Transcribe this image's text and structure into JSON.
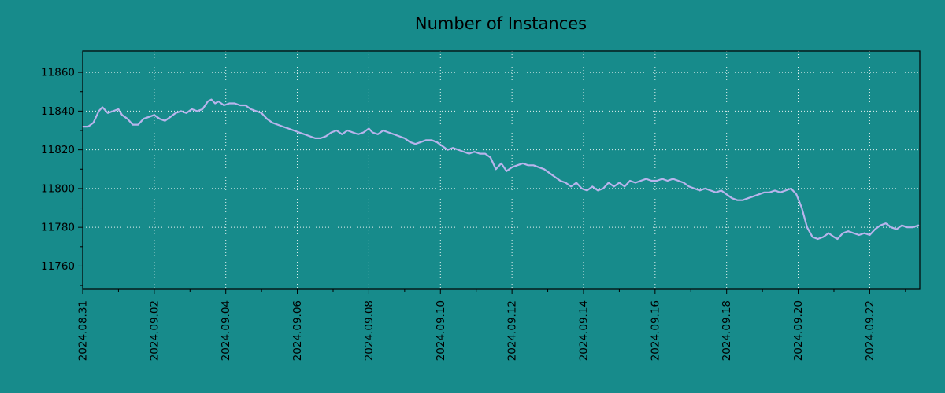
{
  "colors": {
    "background": "#178b8b",
    "line": "#b8b4ec",
    "grid": "#ffffff",
    "axis": "#000000",
    "text": "#000000"
  },
  "chart_data": {
    "type": "line",
    "title": "Number of Instances",
    "xlabel": "",
    "ylabel": "",
    "legend": "none",
    "grid": "dotted",
    "xlim": [
      0,
      23.4
    ],
    "ylim": [
      11748,
      11871
    ],
    "y_ticks": [
      11760,
      11780,
      11800,
      11820,
      11840,
      11860
    ],
    "x_ticks": [
      {
        "pos": 0,
        "label": "2024.08.31"
      },
      {
        "pos": 2,
        "label": "2024.09.02"
      },
      {
        "pos": 4,
        "label": "2024.09.04"
      },
      {
        "pos": 6,
        "label": "2024.09.06"
      },
      {
        "pos": 8,
        "label": "2024.09.08"
      },
      {
        "pos": 10,
        "label": "2024.09.10"
      },
      {
        "pos": 12,
        "label": "2024.09.12"
      },
      {
        "pos": 14,
        "label": "2024.09.14"
      },
      {
        "pos": 16,
        "label": "2024.09.16"
      },
      {
        "pos": 18,
        "label": "2024.09.18"
      },
      {
        "pos": 20,
        "label": "2024.09.20"
      },
      {
        "pos": 22,
        "label": "2024.09.22"
      }
    ],
    "minor_x_ticks": [
      1,
      3,
      5,
      7,
      9,
      11,
      13,
      15,
      17,
      19,
      21,
      23
    ],
    "series": [
      {
        "name": "instances",
        "color": "#b8b4ec",
        "points": [
          [
            0.0,
            11832
          ],
          [
            0.15,
            11832
          ],
          [
            0.3,
            11834
          ],
          [
            0.45,
            11840
          ],
          [
            0.55,
            11842
          ],
          [
            0.7,
            11839
          ],
          [
            0.85,
            11840
          ],
          [
            1.0,
            11841
          ],
          [
            1.1,
            11838
          ],
          [
            1.25,
            11836
          ],
          [
            1.4,
            11833
          ],
          [
            1.55,
            11833
          ],
          [
            1.7,
            11836
          ],
          [
            1.85,
            11837
          ],
          [
            2.0,
            11838
          ],
          [
            2.15,
            11836
          ],
          [
            2.3,
            11835
          ],
          [
            2.45,
            11837
          ],
          [
            2.6,
            11839
          ],
          [
            2.75,
            11840
          ],
          [
            2.9,
            11839
          ],
          [
            3.05,
            11841
          ],
          [
            3.2,
            11840
          ],
          [
            3.35,
            11841
          ],
          [
            3.5,
            11845
          ],
          [
            3.6,
            11846
          ],
          [
            3.7,
            11844
          ],
          [
            3.8,
            11845
          ],
          [
            3.95,
            11843
          ],
          [
            4.1,
            11844
          ],
          [
            4.25,
            11844
          ],
          [
            4.4,
            11843
          ],
          [
            4.55,
            11843
          ],
          [
            4.7,
            11841
          ],
          [
            4.85,
            11840
          ],
          [
            5.0,
            11839
          ],
          [
            5.15,
            11836
          ],
          [
            5.3,
            11834
          ],
          [
            5.45,
            11833
          ],
          [
            5.6,
            11832
          ],
          [
            5.75,
            11831
          ],
          [
            5.9,
            11830
          ],
          [
            6.05,
            11829
          ],
          [
            6.2,
            11828
          ],
          [
            6.35,
            11827
          ],
          [
            6.5,
            11826
          ],
          [
            6.65,
            11826
          ],
          [
            6.8,
            11827
          ],
          [
            6.95,
            11829
          ],
          [
            7.1,
            11830
          ],
          [
            7.25,
            11828
          ],
          [
            7.4,
            11830
          ],
          [
            7.55,
            11829
          ],
          [
            7.7,
            11828
          ],
          [
            7.85,
            11829
          ],
          [
            8.0,
            11831
          ],
          [
            8.1,
            11829
          ],
          [
            8.25,
            11828
          ],
          [
            8.4,
            11830
          ],
          [
            8.55,
            11829
          ],
          [
            8.7,
            11828
          ],
          [
            8.85,
            11827
          ],
          [
            9.0,
            11826
          ],
          [
            9.15,
            11824
          ],
          [
            9.3,
            11823
          ],
          [
            9.45,
            11824
          ],
          [
            9.6,
            11825
          ],
          [
            9.75,
            11825
          ],
          [
            9.9,
            11824
          ],
          [
            10.05,
            11822
          ],
          [
            10.2,
            11820
          ],
          [
            10.35,
            11821
          ],
          [
            10.5,
            11820
          ],
          [
            10.65,
            11819
          ],
          [
            10.8,
            11818
          ],
          [
            10.95,
            11819
          ],
          [
            11.1,
            11818
          ],
          [
            11.25,
            11818
          ],
          [
            11.4,
            11816
          ],
          [
            11.55,
            11810
          ],
          [
            11.7,
            11813
          ],
          [
            11.85,
            11809
          ],
          [
            12.0,
            11811
          ],
          [
            12.15,
            11812
          ],
          [
            12.3,
            11813
          ],
          [
            12.45,
            11812
          ],
          [
            12.6,
            11812
          ],
          [
            12.75,
            11811
          ],
          [
            12.9,
            11810
          ],
          [
            13.05,
            11808
          ],
          [
            13.2,
            11806
          ],
          [
            13.35,
            11804
          ],
          [
            13.5,
            11803
          ],
          [
            13.65,
            11801
          ],
          [
            13.8,
            11803
          ],
          [
            13.95,
            11800
          ],
          [
            14.1,
            11799
          ],
          [
            14.25,
            11801
          ],
          [
            14.4,
            11799
          ],
          [
            14.55,
            11800
          ],
          [
            14.7,
            11803
          ],
          [
            14.85,
            11801
          ],
          [
            15.0,
            11803
          ],
          [
            15.15,
            11801
          ],
          [
            15.3,
            11804
          ],
          [
            15.45,
            11803
          ],
          [
            15.6,
            11804
          ],
          [
            15.75,
            11805
          ],
          [
            15.9,
            11804
          ],
          [
            16.05,
            11804
          ],
          [
            16.2,
            11805
          ],
          [
            16.35,
            11804
          ],
          [
            16.5,
            11805
          ],
          [
            16.65,
            11804
          ],
          [
            16.8,
            11803
          ],
          [
            16.95,
            11801
          ],
          [
            17.1,
            11800
          ],
          [
            17.25,
            11799
          ],
          [
            17.4,
            11800
          ],
          [
            17.55,
            11799
          ],
          [
            17.7,
            11798
          ],
          [
            17.85,
            11799
          ],
          [
            18.0,
            11797
          ],
          [
            18.15,
            11795
          ],
          [
            18.3,
            11794
          ],
          [
            18.45,
            11794
          ],
          [
            18.6,
            11795
          ],
          [
            18.75,
            11796
          ],
          [
            18.9,
            11797
          ],
          [
            19.05,
            11798
          ],
          [
            19.2,
            11798
          ],
          [
            19.35,
            11799
          ],
          [
            19.5,
            11798
          ],
          [
            19.65,
            11799
          ],
          [
            19.8,
            11800
          ],
          [
            19.95,
            11797
          ],
          [
            20.1,
            11790
          ],
          [
            20.25,
            11780
          ],
          [
            20.4,
            11775
          ],
          [
            20.55,
            11774
          ],
          [
            20.7,
            11775
          ],
          [
            20.85,
            11777
          ],
          [
            21.0,
            11775
          ],
          [
            21.1,
            11774
          ],
          [
            21.25,
            11777
          ],
          [
            21.4,
            11778
          ],
          [
            21.55,
            11777
          ],
          [
            21.7,
            11776
          ],
          [
            21.85,
            11777
          ],
          [
            22.0,
            11776
          ],
          [
            22.15,
            11779
          ],
          [
            22.3,
            11781
          ],
          [
            22.45,
            11782
          ],
          [
            22.6,
            11780
          ],
          [
            22.75,
            11779
          ],
          [
            22.9,
            11781
          ],
          [
            23.05,
            11780
          ],
          [
            23.2,
            11780
          ],
          [
            23.36,
            11781
          ]
        ]
      }
    ]
  }
}
